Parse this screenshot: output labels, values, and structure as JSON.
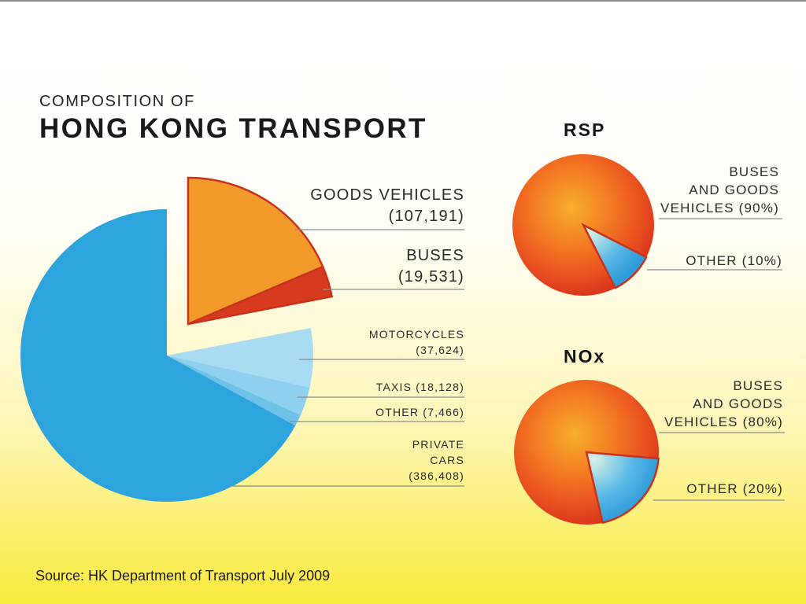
{
  "title": {
    "prefix": "COMPOSITION OF",
    "main": "HONG KONG TRANSPORT"
  },
  "source": "Source: HK Department of Transport July 2009",
  "colors": {
    "private_cars": "#2ea4dc",
    "motorcycles": "#a9dcf3",
    "taxis": "#8fd0ee",
    "other": "#6ec2ea",
    "goods": "#f49a2b",
    "buses": "#d63a1f",
    "big_orange": "#f26a22",
    "small_blue": "#3aa7e0"
  },
  "chart_data": [
    {
      "type": "pie",
      "title": "HONG KONG TRANSPORT",
      "slices": [
        {
          "key": "goods",
          "name": "GOODS VEHICLES",
          "value": 107191,
          "label_lines": [
            "GOODS VEHICLES",
            "(107,191)"
          ]
        },
        {
          "key": "buses",
          "name": "BUSES",
          "value": 19531,
          "label_lines": [
            "BUSES",
            "(19,531)"
          ]
        },
        {
          "key": "motorcycles",
          "name": "MOTORCYCLES",
          "value": 37624,
          "label_lines": [
            "MOTORCYCLES",
            "(37,624)"
          ]
        },
        {
          "key": "taxis",
          "name": "TAXIS",
          "value": 18128,
          "label_lines": [
            "TAXIS (18,128)"
          ]
        },
        {
          "key": "other",
          "name": "OTHER",
          "value": 7466,
          "label_lines": [
            "OTHER (7,466)"
          ]
        },
        {
          "key": "private_cars",
          "name": "PRIVATE CARS",
          "value": 386408,
          "label_lines": [
            "PRIVATE",
            "CARS",
            "(386,408)"
          ]
        }
      ]
    },
    {
      "type": "pie",
      "title": "RSP",
      "slices": [
        {
          "name": "BUSES AND GOODS VEHICLES",
          "value": 90,
          "label_lines": [
            "BUSES",
            "AND GOODS",
            "VEHICLES (90%)"
          ]
        },
        {
          "name": "OTHER",
          "value": 10,
          "label_lines": [
            "OTHER (10%)"
          ]
        }
      ]
    },
    {
      "type": "pie",
      "title": "NOx",
      "slices": [
        {
          "name": "BUSES AND GOODS VEHICLES",
          "value": 80,
          "label_lines": [
            "BUSES",
            "AND GOODS",
            "VEHICLES (80%)"
          ]
        },
        {
          "name": "OTHER",
          "value": 20,
          "label_lines": [
            "OTHER (20%)"
          ]
        }
      ]
    }
  ]
}
